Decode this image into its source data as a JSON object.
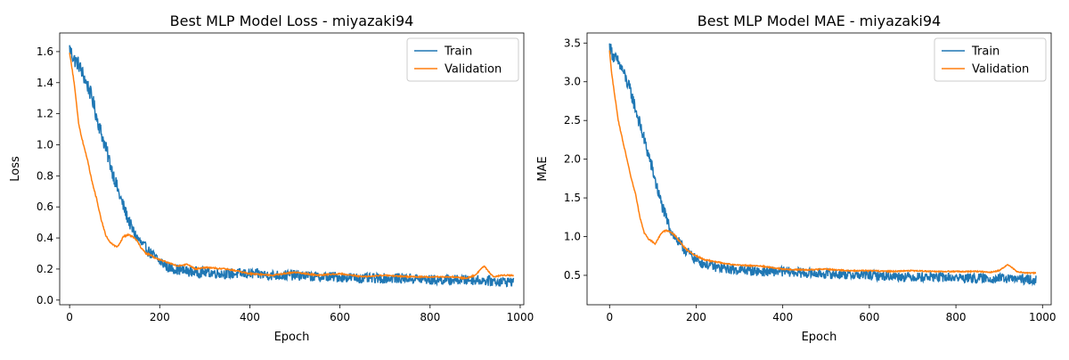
{
  "colors": {
    "train": "#1f77b4",
    "validation": "#ff7f0e"
  },
  "chart_data": [
    {
      "type": "line",
      "title": "Best MLP Model Loss - miyazaki94",
      "xlabel": "Epoch",
      "ylabel": "Loss",
      "xlim": [
        -22,
        1008
      ],
      "ylim": [
        -0.03,
        1.72
      ],
      "xticks": [
        0,
        200,
        400,
        600,
        800,
        1000
      ],
      "xtick_labels": [
        "0",
        "200",
        "400",
        "600",
        "800",
        "1000"
      ],
      "yticks": [
        0.0,
        0.2,
        0.4,
        0.6,
        0.8,
        1.0,
        1.2,
        1.4,
        1.6
      ],
      "ytick_labels": [
        "0.0",
        "0.2",
        "0.4",
        "0.6",
        "0.8",
        "1.0",
        "1.2",
        "1.4",
        "1.6"
      ],
      "grid": false,
      "legend": "top-right",
      "series": [
        {
          "name": "Train",
          "color_key": "train",
          "x": [
            0,
            10,
            20,
            30,
            40,
            50,
            60,
            70,
            80,
            90,
            100,
            110,
            120,
            130,
            140,
            150,
            160,
            170,
            180,
            200,
            220,
            250,
            280,
            300,
            350,
            400,
            450,
            500,
            550,
            600,
            650,
            700,
            750,
            800,
            850,
            900,
            950,
            985
          ],
          "y": [
            1.62,
            1.55,
            1.52,
            1.45,
            1.38,
            1.3,
            1.18,
            1.08,
            0.98,
            0.88,
            0.78,
            0.68,
            0.6,
            0.52,
            0.45,
            0.4,
            0.36,
            0.33,
            0.3,
            0.25,
            0.21,
            0.19,
            0.18,
            0.18,
            0.17,
            0.17,
            0.16,
            0.16,
            0.15,
            0.15,
            0.14,
            0.14,
            0.14,
            0.13,
            0.13,
            0.13,
            0.12,
            0.12
          ],
          "noise": 0.05
        },
        {
          "name": "Validation",
          "color_key": "validation",
          "x": [
            0,
            5,
            10,
            15,
            20,
            25,
            30,
            40,
            50,
            60,
            70,
            80,
            90,
            100,
            105,
            110,
            120,
            130,
            140,
            150,
            160,
            170,
            180,
            190,
            200,
            220,
            240,
            260,
            280,
            300,
            350,
            400,
            450,
            500,
            550,
            600,
            650,
            700,
            750,
            800,
            850,
            880,
            900,
            920,
            940,
            960,
            985
          ],
          "y": [
            1.59,
            1.5,
            1.4,
            1.27,
            1.14,
            1.07,
            1.01,
            0.9,
            0.76,
            0.65,
            0.52,
            0.42,
            0.37,
            0.35,
            0.34,
            0.36,
            0.41,
            0.42,
            0.41,
            0.38,
            0.33,
            0.3,
            0.29,
            0.27,
            0.26,
            0.24,
            0.22,
            0.23,
            0.2,
            0.21,
            0.2,
            0.17,
            0.16,
            0.18,
            0.16,
            0.17,
            0.15,
            0.16,
            0.15,
            0.15,
            0.15,
            0.14,
            0.16,
            0.22,
            0.15,
            0.16,
            0.16
          ],
          "noise": 0.006
        }
      ]
    },
    {
      "type": "line",
      "title": "Best MLP Model MAE - miyazaki94",
      "xlabel": "Epoch",
      "ylabel": "MAE",
      "xlim": [
        -52,
        1020
      ],
      "ylim": [
        0.12,
        3.63
      ],
      "xticks": [
        0,
        200,
        400,
        600,
        800,
        1000
      ],
      "xtick_labels": [
        "0",
        "200",
        "400",
        "600",
        "800",
        "1000"
      ],
      "yticks": [
        0.5,
        1.0,
        1.5,
        2.0,
        2.5,
        3.0,
        3.5
      ],
      "ytick_labels": [
        "0.5",
        "1.0",
        "1.5",
        "2.0",
        "2.5",
        "3.0",
        "3.5"
      ],
      "grid": false,
      "legend": "top-right",
      "series": [
        {
          "name": "Train",
          "color_key": "train",
          "x": [
            0,
            10,
            20,
            30,
            40,
            50,
            60,
            70,
            80,
            90,
            100,
            110,
            120,
            130,
            140,
            150,
            160,
            170,
            180,
            200,
            220,
            250,
            280,
            300,
            350,
            400,
            450,
            500,
            550,
            600,
            650,
            700,
            750,
            800,
            850,
            900,
            950,
            985
          ],
          "y": [
            3.45,
            3.32,
            3.25,
            3.15,
            3.0,
            2.85,
            2.65,
            2.45,
            2.25,
            2.05,
            1.85,
            1.62,
            1.42,
            1.25,
            1.1,
            1.0,
            0.92,
            0.85,
            0.8,
            0.7,
            0.65,
            0.6,
            0.58,
            0.57,
            0.55,
            0.55,
            0.53,
            0.52,
            0.51,
            0.5,
            0.49,
            0.48,
            0.48,
            0.47,
            0.46,
            0.46,
            0.45,
            0.44
          ],
          "noise": 0.09
        },
        {
          "name": "Validation",
          "color_key": "validation",
          "x": [
            0,
            5,
            10,
            15,
            20,
            30,
            40,
            50,
            60,
            70,
            80,
            90,
            100,
            105,
            110,
            120,
            130,
            140,
            150,
            160,
            170,
            180,
            200,
            220,
            250,
            280,
            300,
            350,
            400,
            450,
            500,
            550,
            600,
            650,
            700,
            750,
            800,
            850,
            880,
            900,
            920,
            940,
            960,
            985
          ],
          "y": [
            3.4,
            3.1,
            2.9,
            2.7,
            2.5,
            2.25,
            2.0,
            1.75,
            1.55,
            1.25,
            1.05,
            0.97,
            0.93,
            0.9,
            0.95,
            1.05,
            1.08,
            1.06,
            1.02,
            0.95,
            0.88,
            0.82,
            0.75,
            0.7,
            0.67,
            0.64,
            0.63,
            0.62,
            0.58,
            0.57,
            0.58,
            0.56,
            0.56,
            0.55,
            0.56,
            0.55,
            0.55,
            0.55,
            0.54,
            0.56,
            0.64,
            0.55,
            0.53,
            0.53
          ],
          "noise": 0.01
        }
      ]
    }
  ]
}
